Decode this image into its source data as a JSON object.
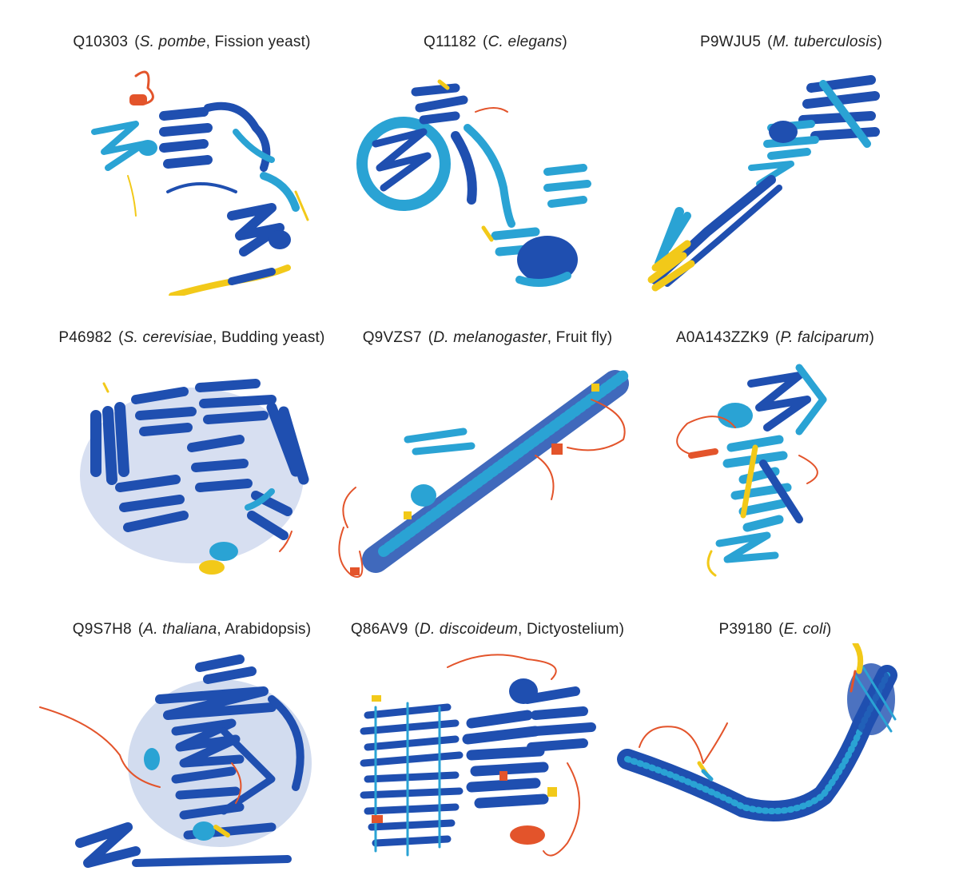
{
  "colors": {
    "very_high": "#1f4fb0",
    "confident": "#2aa3d4",
    "low": "#f2c919",
    "very_low": "#e3542b"
  },
  "panels": [
    {
      "accession": "Q10303",
      "species": "S. pombe",
      "common": ", Fission yeast",
      "close": ")"
    },
    {
      "accession": "Q11182",
      "species": "C. elegans",
      "common": "",
      "close": ")"
    },
    {
      "accession": "P9WJU5",
      "species": "M. tuberculosis",
      "common": "",
      "close": ")"
    },
    {
      "accession": "P46982",
      "species": "S. cerevisiae",
      "common": ", Budding yeast",
      "close": ")"
    },
    {
      "accession": "Q9VZS7",
      "species": "D. melanogaster",
      "common": ", Fruit fly",
      "close": ")"
    },
    {
      "accession": "A0A143ZZK9",
      "species": "P. falciparum",
      "common": "",
      "close": ")"
    },
    {
      "accession": "Q9S7H8",
      "species": "A. thaliana",
      "common": ", Arabidopsis",
      "close": ")"
    },
    {
      "accession": "Q86AV9",
      "species": "D. discoideum",
      "common": ", Dictyostelium",
      "close": ")"
    },
    {
      "accession": "P39180",
      "species": "E. coli",
      "common": "",
      "close": ")"
    }
  ]
}
